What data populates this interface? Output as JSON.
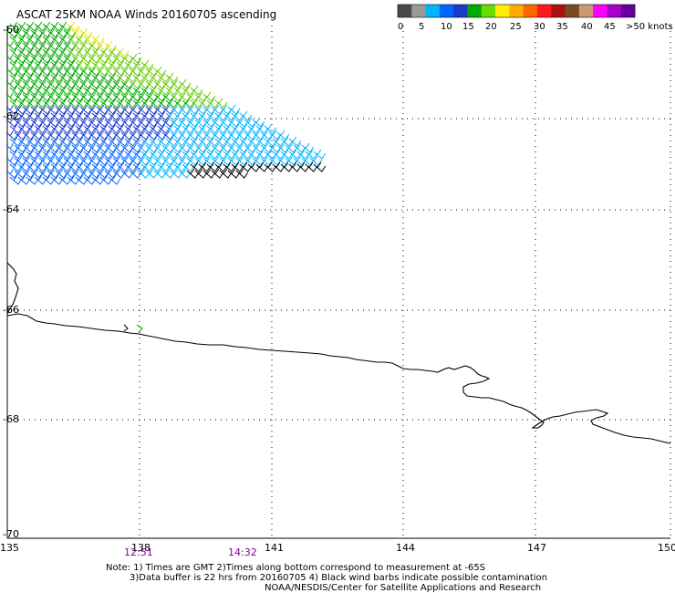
{
  "title": "ASCAT 25KM NOAA Winds 20160705 ascending",
  "legend": {
    "colors": [
      "#4a4a4a",
      "#9a9a9a",
      "#00b4ff",
      "#0066ff",
      "#1a3acc",
      "#00aa00",
      "#66dd00",
      "#ffee00",
      "#ffaa00",
      "#ff6600",
      "#ff1a1a",
      "#aa1111",
      "#7a4a22",
      "#cc9977",
      "#ff00ff",
      "#aa00cc",
      "#660099"
    ],
    "labels": [
      "0",
      "5",
      "10",
      "15",
      "20",
      "25",
      "30",
      "35",
      "40",
      "45",
      ">50 knots"
    ]
  },
  "lat_labels": [
    "-60",
    "-62",
    "-64",
    "-66",
    "-68",
    "-70"
  ],
  "lon_labels": [
    "135",
    "138",
    "141",
    "144",
    "147",
    "150"
  ],
  "time_labels": [
    "12:51",
    "14:32"
  ],
  "note": {
    "line1": "Note: 1) Times are GMT 2)Times along bottom correspond to measurement at -65S",
    "line2": "3)Data buffer is 22 hrs from 20160705 4) Black wind barbs indicate possible contamination",
    "line3": "NOAA/NESDIS/Center for Satellite Applications and Research"
  }
}
